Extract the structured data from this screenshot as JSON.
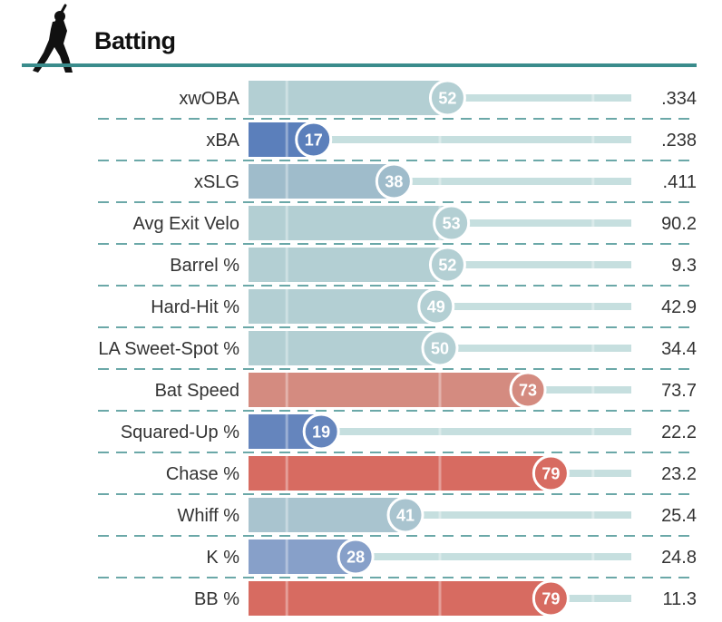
{
  "header": {
    "title": "Batting",
    "icon": "baseball-batter-icon"
  },
  "colors": {
    "accent": "#3a8c8c",
    "track": "#c6dfdf",
    "divider": "#3a8c8c",
    "scale": [
      "#5b7fbb",
      "#9fbccb",
      "#b3cfd3",
      "#d48b80",
      "#d76b61"
    ]
  },
  "chart_data": {
    "type": "bar",
    "orientation": "horizontal",
    "xlim": [
      0,
      100
    ],
    "categories": [
      "xwOBA",
      "xBA",
      "xSLG",
      "Avg Exit Velo",
      "Barrel %",
      "Hard-Hit %",
      "LA Sweet-Spot %",
      "Bat Speed",
      "Squared-Up %",
      "Chase %",
      "Whiff %",
      "K %",
      "BB %"
    ],
    "percentiles": [
      52,
      17,
      38,
      53,
      52,
      49,
      50,
      73,
      19,
      79,
      41,
      28,
      79
    ],
    "stat_values": [
      ".334",
      ".238",
      ".411",
      "90.2",
      "9.3",
      "42.9",
      "34.4",
      "73.7",
      "22.2",
      "23.2",
      "25.4",
      "24.8",
      "11.3"
    ],
    "bar_colors": [
      "#b3cfd3",
      "#5b7fbb",
      "#9fbccb",
      "#b3cfd3",
      "#b3cfd3",
      "#b3cfd3",
      "#b3cfd3",
      "#d48b80",
      "#6585bd",
      "#d76b61",
      "#a9c4cf",
      "#87a0c9",
      "#d76b61"
    ]
  }
}
